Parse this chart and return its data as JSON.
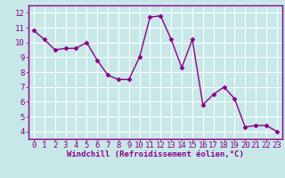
{
  "x": [
    0,
    1,
    2,
    3,
    4,
    5,
    6,
    7,
    8,
    9,
    10,
    11,
    12,
    13,
    14,
    15,
    16,
    17,
    18,
    19,
    20,
    21,
    22,
    23
  ],
  "y": [
    10.8,
    10.2,
    9.5,
    9.6,
    9.6,
    10.0,
    8.8,
    7.8,
    7.5,
    7.5,
    9.0,
    11.7,
    11.8,
    10.2,
    8.3,
    10.2,
    5.8,
    6.5,
    7.0,
    6.2,
    4.3,
    4.4,
    4.4,
    4.0
  ],
  "line_color": "#8b008b",
  "marker": "D",
  "markersize": 2.5,
  "linewidth": 1.0,
  "bg_color": "#c8e8e8",
  "plot_bg_color": "#c8e8e8",
  "grid_color": "#aad4d4",
  "xlabel": "Windchill (Refroidissement éolien,°C)",
  "xlabel_fontsize": 6.5,
  "xlabel_color": "#8b008b",
  "xtick_labels": [
    "0",
    "1",
    "2",
    "3",
    "4",
    "5",
    "6",
    "7",
    "8",
    "9",
    "10",
    "11",
    "12",
    "13",
    "14",
    "15",
    "16",
    "17",
    "18",
    "19",
    "20",
    "21",
    "22",
    "23"
  ],
  "ytick_vals": [
    4,
    5,
    6,
    7,
    8,
    9,
    10,
    11,
    12
  ],
  "ytick_labels": [
    "4",
    "5",
    "6",
    "7",
    "8",
    "9",
    "10",
    "11",
    "12"
  ],
  "ylim": [
    3.5,
    12.5
  ],
  "xlim": [
    -0.5,
    23.5
  ],
  "tick_fontsize": 6.5,
  "tick_color": "#8b008b",
  "spine_color": "#8b008b",
  "grid_minor_color": "#b8dede"
}
